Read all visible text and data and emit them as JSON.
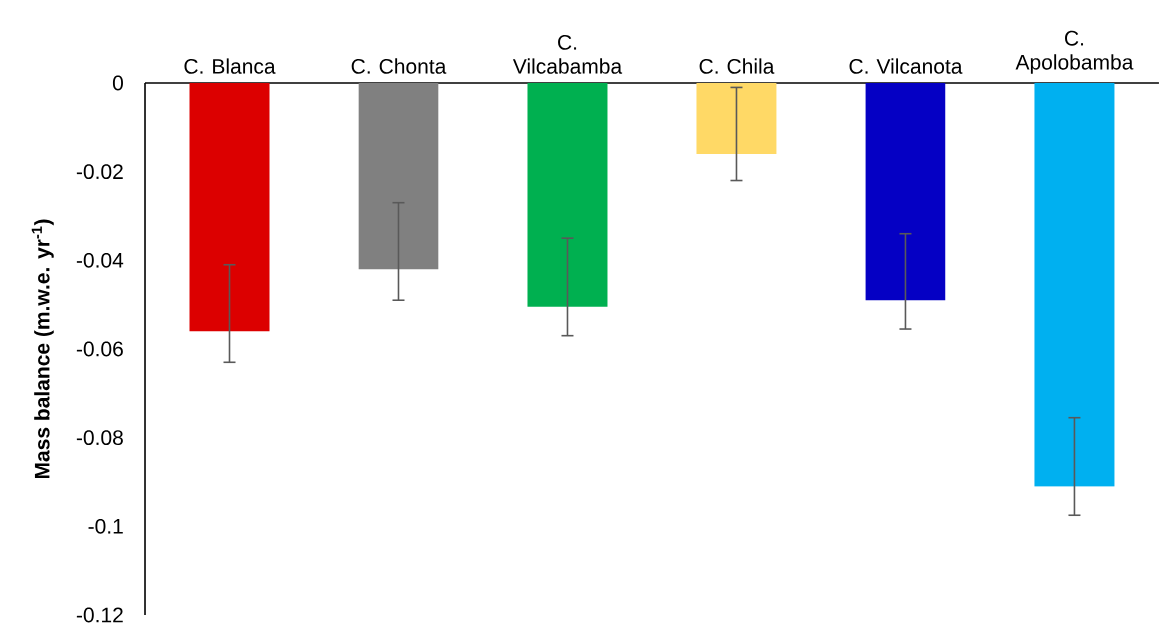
{
  "chart_data": {
    "type": "bar",
    "ylabel": "Mass balance (m.w.e. yr$^{-1}$)",
    "categories": [
      "C. Blanca",
      "C. Chonta",
      "C. Vilcabamba",
      "C. Chila",
      "C. Vilcanota",
      "C. Apolobamba"
    ],
    "values": [
      -0.056,
      -0.042,
      -0.0505,
      -0.016,
      -0.049,
      -0.091
    ],
    "colors": [
      "#dc0000",
      "#808080",
      "#00b050",
      "#ffd966",
      "#0500c4",
      "#00b0f0"
    ],
    "errors": [
      [
        -0.063,
        -0.041
      ],
      [
        -0.049,
        -0.027
      ],
      [
        -0.057,
        -0.035
      ],
      [
        -0.022,
        -0.001
      ],
      [
        -0.0555,
        -0.034
      ],
      [
        -0.0975,
        -0.0755
      ]
    ],
    "ylim": [
      -0.12,
      0
    ],
    "yticks": [
      -0.12,
      -0.1,
      -0.08,
      -0.06,
      -0.04,
      -0.02,
      0
    ]
  }
}
